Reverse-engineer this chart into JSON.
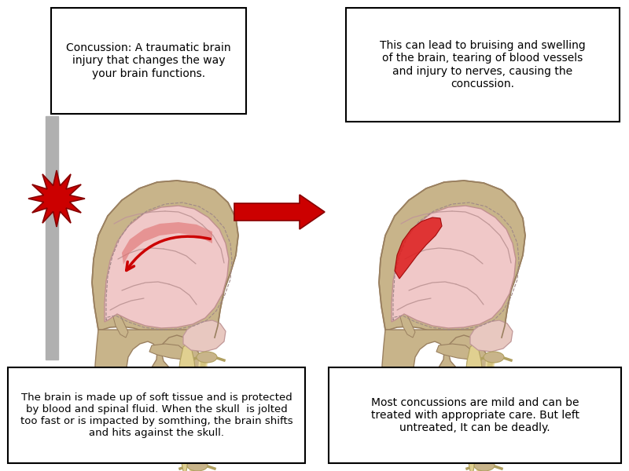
{
  "bg_color": "#ffffff",
  "box1_text": "Concussion: A traumatic brain\ninjury that changes the way\nyour brain functions.",
  "box2_text": "This can lead to bruising and swelling\nof the brain, tearing of blood vessels\nand injury to nerves, causing the\nconcussion.",
  "box3_text": "The brain is made up of soft tissue and is protected\nby blood and spinal fluid. When the skull  is jolted\ntoo fast or is impacted by somthing, the brain shifts\nand hits against the skull.",
  "box4_text": "Most concussions are mild and can be\ntreated with appropriate care. But left\nuntreated, It can be deadly.",
  "arrow_color": "#cc0000",
  "starburst_color": "#cc0000",
  "skull_color": "#c8b48a",
  "skull_edge": "#9a8060",
  "brain_color": "#f0c8c8",
  "brain_edge": "#c09090",
  "spine_color": "#e8d8a0",
  "spine_edge": "#b0a060",
  "bruise_color": "#dd2020",
  "gray_bar": "#b0b0b0"
}
